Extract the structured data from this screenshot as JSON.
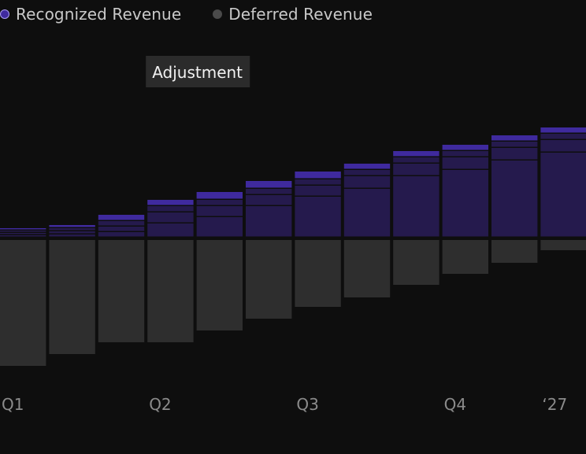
{
  "legend": {
    "items": [
      {
        "label": "Recognized Revenue",
        "color": "#3f2a9e",
        "style": "ring"
      },
      {
        "label": "Deferred Revenue",
        "color": "#4a4a4a",
        "style": "dot"
      }
    ]
  },
  "chart_data": {
    "type": "bar",
    "title": "",
    "xlabel": "",
    "ylabel": "",
    "x_ticks": [
      {
        "label": "Q1",
        "at": 0
      },
      {
        "label": "Q2",
        "at": 3
      },
      {
        "label": "Q3",
        "at": 6
      },
      {
        "label": "Q4",
        "at": 9
      },
      {
        "label": "‘27",
        "at": 11
      }
    ],
    "categories": [
      "1",
      "2",
      "3",
      "4",
      "5",
      "6",
      "7",
      "8",
      "9",
      "10",
      "11",
      "12"
    ],
    "series": [
      {
        "name": "Recognized Revenue",
        "color": "#251a4d",
        "top_color": "#3f2a9e",
        "values": [
          12,
          16,
          29,
          48,
          58,
          72,
          84,
          94,
          110,
          118,
          130,
          140
        ],
        "segments": [
          [
            3,
            3,
            3,
            3
          ],
          [
            4,
            4,
            4,
            4
          ],
          [
            7,
            7,
            7,
            8
          ],
          [
            18,
            14,
            8,
            8
          ],
          [
            26,
            14,
            8,
            10
          ],
          [
            40,
            14,
            8,
            10
          ],
          [
            52,
            14,
            8,
            10
          ],
          [
            62,
            16,
            8,
            8
          ],
          [
            78,
            16,
            8,
            8
          ],
          [
            86,
            16,
            8,
            8
          ],
          [
            98,
            16,
            8,
            8
          ],
          [
            108,
            16,
            8,
            8
          ]
        ]
      },
      {
        "name": "Deferred Revenue",
        "color": "#2e2e2e",
        "values": [
          -160,
          -145,
          -130,
          -130,
          -115,
          -100,
          -85,
          -73,
          -57,
          -43,
          -29,
          -13
        ]
      }
    ],
    "ylim": [
      -190,
      160
    ],
    "grid": false,
    "legend_position": "top-left",
    "annotation": {
      "text": "Adjustment",
      "category_index": 3
    }
  }
}
